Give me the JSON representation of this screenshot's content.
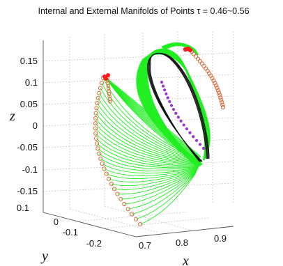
{
  "chart_data": {
    "type": "scatter",
    "projection": "3d",
    "title": "Internal and External Manifolds of Points τ = 0.46~0.56",
    "xlabel": "x",
    "ylabel": "y",
    "zlabel": "z",
    "x_ticks": [
      "0.7",
      "0.8",
      "0.9"
    ],
    "y_ticks": [
      "0.1",
      "0",
      "-0.1",
      "-0.2"
    ],
    "z_ticks": [
      "0.15",
      "0.1",
      "0.05",
      "0",
      "-0.05",
      "-0.1",
      "-0.15"
    ],
    "xlim": [
      0.65,
      0.95
    ],
    "ylim": [
      -0.2,
      0.12
    ],
    "zlim": [
      -0.18,
      0.18
    ],
    "grid": true,
    "colors": {
      "manifold_lines": "#22ee22",
      "circle_points": "#d86a3a",
      "red_markers": "#ff1a1a",
      "black_orbit": "#111111",
      "purple_points": "#9933cc"
    }
  }
}
